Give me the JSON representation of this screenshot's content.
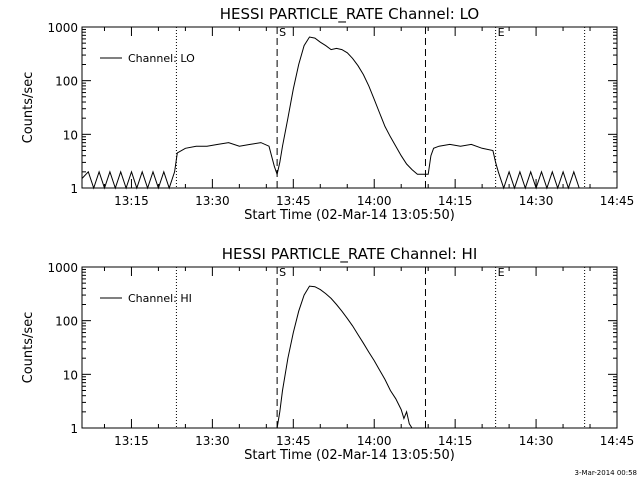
{
  "chart_data": [
    {
      "type": "line",
      "title": "HESSI PARTICLE_RATE Channel: LO",
      "xlabel": "Start Time (02-Mar-14 13:05:50)",
      "ylabel": "Counts/sec",
      "yscale": "log",
      "ylim": [
        1,
        1000
      ],
      "xlim": [
        "13:05:50",
        "14:45:00"
      ],
      "xticks": [
        "13:15",
        "13:30",
        "13:45",
        "14:00",
        "14:15",
        "14:30",
        "14:45"
      ],
      "yticks": [
        "1",
        "10",
        "100",
        "1000"
      ],
      "legend": {
        "position": "top-left",
        "entries": [
          "Channel: LO"
        ]
      },
      "markers": [
        {
          "time": "13:23:20",
          "style": "dotted",
          "label": ""
        },
        {
          "time": "13:42:00",
          "style": "dashed",
          "label": "S"
        },
        {
          "time": "14:09:30",
          "style": "dashed",
          "label": ""
        },
        {
          "time": "14:22:30",
          "style": "dotted",
          "label": "E"
        },
        {
          "time": "14:39:00",
          "style": "dotted",
          "label": ""
        }
      ],
      "series": [
        {
          "name": "Channel: LO",
          "x": [
            "13:05:50",
            "13:07:00",
            "13:08:00",
            "13:09:00",
            "13:10:00",
            "13:11:00",
            "13:12:00",
            "13:13:00",
            "13:14:00",
            "13:15:00",
            "13:16:00",
            "13:17:00",
            "13:18:00",
            "13:19:00",
            "13:20:00",
            "13:21:00",
            "13:22:00",
            "13:23:00",
            "13:23:30",
            "13:25:00",
            "13:27:00",
            "13:29:00",
            "13:31:00",
            "13:33:00",
            "13:35:00",
            "13:37:00",
            "13:39:00",
            "13:40:30",
            "13:41:30",
            "13:42:00",
            "13:42:30",
            "13:43:00",
            "13:44:00",
            "13:45:00",
            "13:46:00",
            "13:47:00",
            "13:48:00",
            "13:49:00",
            "13:50:00",
            "13:51:00",
            "13:52:00",
            "13:53:00",
            "13:54:00",
            "13:55:00",
            "13:56:00",
            "13:57:00",
            "13:58:00",
            "13:59:00",
            "14:00:00",
            "14:01:00",
            "14:02:00",
            "14:03:00",
            "14:04:00",
            "14:05:00",
            "14:06:00",
            "14:07:00",
            "14:08:00",
            "14:09:00",
            "14:10:00",
            "14:10:30",
            "14:11:00",
            "14:12:00",
            "14:14:00",
            "14:16:00",
            "14:18:00",
            "14:20:00",
            "14:22:00",
            "14:22:30",
            "14:23:00",
            "14:24:00",
            "14:25:00",
            "14:26:00",
            "14:27:00",
            "14:28:00",
            "14:29:00",
            "14:30:00",
            "14:31:00",
            "14:32:00",
            "14:33:00",
            "14:34:00",
            "14:35:00",
            "14:36:00",
            "14:37:00",
            "14:38:00",
            "14:39:00",
            "14:40:00",
            "14:41:00",
            "14:42:00",
            "14:43:00",
            "14:44:00",
            "14:45:00"
          ],
          "y": [
            1.5,
            2,
            1,
            2,
            1,
            2,
            1,
            2,
            1,
            2,
            1,
            2,
            1,
            2,
            1,
            2,
            1,
            2,
            4.5,
            5.5,
            6,
            6,
            6.5,
            7,
            6,
            6.5,
            7,
            6,
            2.5,
            1.8,
            3,
            6,
            20,
            70,
            200,
            450,
            650,
            620,
            520,
            450,
            380,
            400,
            380,
            330,
            260,
            190,
            130,
            80,
            45,
            25,
            14,
            9,
            6,
            4,
            2.8,
            2.2,
            1.8,
            1.8,
            1.8,
            4,
            5.5,
            6,
            6.5,
            6,
            6.5,
            5.5,
            5,
            3,
            2,
            1,
            2,
            1,
            2,
            1,
            2,
            1,
            2,
            1,
            2,
            1,
            2,
            1,
            2,
            1,
            1,
            1,
            1,
            1,
            1,
            1,
            1
          ]
        }
      ]
    },
    {
      "type": "line",
      "title": "HESSI PARTICLE_RATE Channel: HI",
      "xlabel": "Start Time (02-Mar-14 13:05:50)",
      "ylabel": "Counts/sec",
      "yscale": "log",
      "ylim": [
        1,
        1000
      ],
      "xlim": [
        "13:05:50",
        "14:45:00"
      ],
      "xticks": [
        "13:15",
        "13:30",
        "13:45",
        "14:00",
        "14:15",
        "14:30",
        "14:45"
      ],
      "yticks": [
        "1",
        "10",
        "100",
        "1000"
      ],
      "legend": {
        "position": "top-left",
        "entries": [
          "Channel: HI"
        ]
      },
      "markers": [
        {
          "time": "13:23:20",
          "style": "dotted",
          "label": ""
        },
        {
          "time": "13:42:00",
          "style": "dashed",
          "label": "S"
        },
        {
          "time": "14:09:30",
          "style": "dashed",
          "label": ""
        },
        {
          "time": "14:22:30",
          "style": "dotted",
          "label": "E"
        },
        {
          "time": "14:39:00",
          "style": "dotted",
          "label": ""
        }
      ],
      "series": [
        {
          "name": "Channel: HI",
          "x": [
            "13:42:00",
            "13:42:30",
            "13:43:00",
            "13:44:00",
            "13:45:00",
            "13:46:00",
            "13:47:00",
            "13:48:00",
            "13:49:00",
            "13:50:00",
            "13:51:00",
            "13:52:00",
            "13:53:00",
            "13:54:00",
            "13:55:00",
            "13:56:00",
            "13:57:00",
            "13:58:00",
            "13:59:00",
            "14:00:00",
            "14:01:00",
            "14:02:00",
            "14:03:00",
            "14:04:00",
            "14:05:00",
            "14:05:30",
            "14:06:00",
            "14:06:30",
            "14:07:00"
          ],
          "y": [
            1,
            2,
            5,
            20,
            60,
            150,
            300,
            440,
            430,
            380,
            320,
            260,
            200,
            150,
            110,
            80,
            55,
            38,
            26,
            18,
            12,
            8,
            5,
            3.5,
            2.2,
            1.5,
            2,
            1.2,
            1
          ]
        }
      ]
    }
  ],
  "footer": {
    "stamp": "3-Mar-2014 00:58"
  }
}
